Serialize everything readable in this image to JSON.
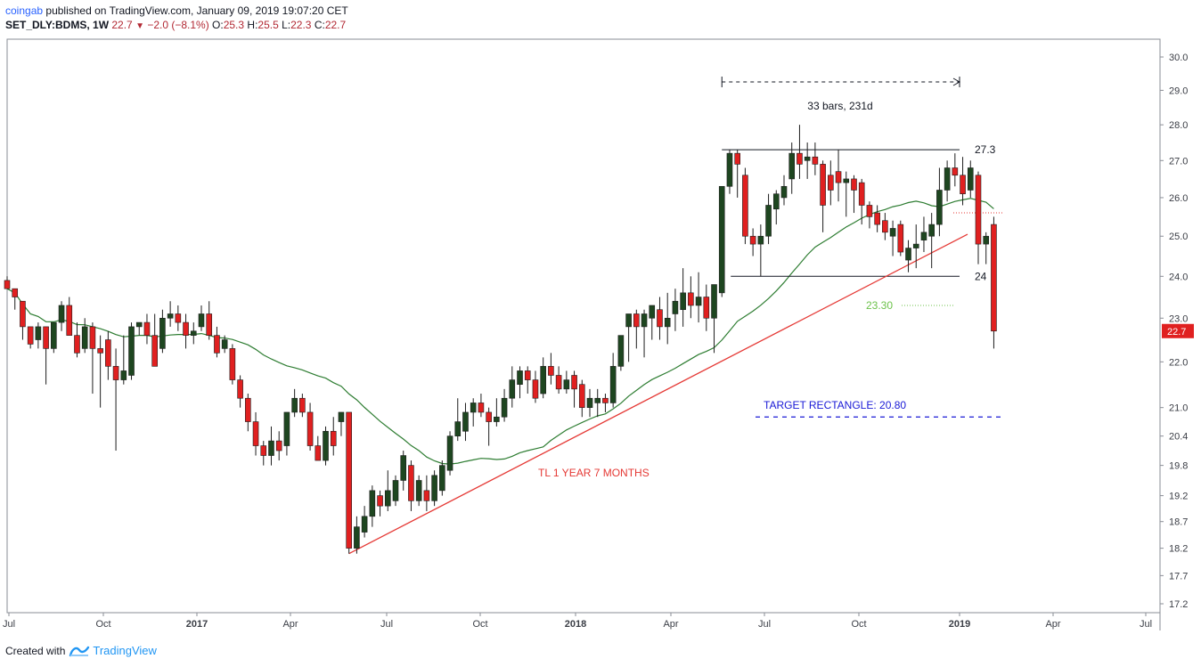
{
  "header": {
    "author": "coingab",
    "published_text": "published on TradingView.com, January 09, 2019 19:07:20 CET",
    "symbol": "SET_DLY:BDMS, 1W",
    "last": "22.7",
    "change": "−2.0 (−8.1%)",
    "o_label": "O:",
    "o_value": "25.3",
    "h_label": "H:",
    "h_value": "25.5",
    "l_label": "L:",
    "l_value": "22.3",
    "c_label": "C:",
    "c_value": "22.7"
  },
  "footer": {
    "created_with": "Created with",
    "brand": "TradingView"
  },
  "colors": {
    "up": "#1e4620",
    "down": "#e02020",
    "wick": "#1d1d1d",
    "ma": "#2e7d32",
    "trendline": "#e53935",
    "target": "#1a1ad6",
    "level_green": "#6cc24a",
    "price_tag": "#e02020"
  },
  "chart_data": {
    "type": "candlestick",
    "title": "",
    "y_scale": "log",
    "ylim": [
      17.0,
      30.5
    ],
    "y_ticks": [
      "30.0",
      "29.0",
      "28.0",
      "27.0",
      "26.0",
      "25.0",
      "24.0",
      "23.0",
      "22.0",
      "21.0",
      "20.4",
      "19.8",
      "19.2",
      "18.7",
      "18.2",
      "17.7",
      "17.2"
    ],
    "x_ticks": [
      "Jul",
      "Oct",
      "2017",
      "Apr",
      "Jul",
      "Oct",
      "2018",
      "Apr",
      "Jul",
      "Oct",
      "2019",
      "Apr",
      "Jul"
    ],
    "last_price_label": "22.7",
    "candles": [
      [
        23.9,
        23.7,
        24.0,
        23.7
      ],
      [
        23.7,
        23.5,
        23.7,
        23.2
      ],
      [
        23.4,
        22.8,
        23.4,
        22.5
      ],
      [
        22.8,
        22.4,
        22.8,
        22.3
      ],
      [
        22.5,
        22.8,
        22.9,
        22.3
      ],
      [
        22.8,
        22.3,
        22.8,
        21.5
      ],
      [
        22.3,
        22.9,
        22.9,
        22.2
      ],
      [
        22.9,
        23.3,
        23.4,
        22.7
      ],
      [
        23.3,
        22.6,
        23.5,
        22.6
      ],
      [
        22.6,
        22.2,
        22.9,
        22.1
      ],
      [
        22.3,
        22.8,
        23.0,
        22.2
      ],
      [
        22.8,
        22.3,
        22.9,
        21.3
      ],
      [
        22.3,
        22.2,
        22.6,
        21.0
      ],
      [
        22.5,
        21.9,
        22.7,
        21.6
      ],
      [
        21.9,
        21.6,
        22.3,
        20.1
      ],
      [
        21.6,
        21.8,
        22.6,
        21.5
      ],
      [
        21.7,
        22.8,
        22.9,
        21.6
      ],
      [
        22.8,
        22.9,
        22.9,
        22.6
      ],
      [
        22.9,
        22.6,
        23.1,
        22.4
      ],
      [
        22.6,
        21.9,
        23.1,
        21.9
      ],
      [
        22.3,
        23.0,
        23.2,
        22.2
      ],
      [
        23.0,
        23.1,
        23.4,
        22.8
      ],
      [
        23.1,
        22.9,
        23.3,
        22.7
      ],
      [
        22.9,
        22.6,
        23.1,
        22.3
      ],
      [
        22.6,
        22.7,
        22.9,
        22.4
      ],
      [
        22.8,
        23.1,
        23.3,
        22.7
      ],
      [
        23.1,
        22.6,
        23.4,
        22.5
      ],
      [
        22.6,
        22.2,
        22.8,
        22.1
      ],
      [
        22.3,
        22.5,
        22.6,
        22.2
      ],
      [
        22.3,
        21.6,
        22.4,
        21.5
      ],
      [
        21.6,
        21.2,
        21.7,
        21.0
      ],
      [
        21.2,
        20.7,
        21.3,
        20.5
      ],
      [
        20.7,
        20.2,
        20.9,
        20.0
      ],
      [
        20.2,
        20.0,
        20.3,
        19.8
      ],
      [
        20.0,
        20.3,
        20.6,
        19.8
      ],
      [
        20.3,
        20.1,
        20.5,
        19.9
      ],
      [
        20.2,
        20.9,
        20.9,
        20.0
      ],
      [
        20.9,
        21.2,
        21.4,
        20.8
      ],
      [
        21.2,
        20.9,
        21.3,
        20.8
      ],
      [
        20.9,
        20.2,
        21.1,
        20.1
      ],
      [
        20.2,
        19.9,
        20.4,
        19.9
      ],
      [
        19.9,
        20.5,
        20.6,
        19.8
      ],
      [
        20.5,
        20.2,
        20.8,
        20.0
      ],
      [
        20.7,
        20.9,
        20.9,
        20.4
      ],
      [
        20.9,
        18.2,
        20.9,
        18.1
      ],
      [
        18.2,
        18.6,
        18.8,
        18.1
      ],
      [
        18.5,
        18.8,
        19.0,
        18.4
      ],
      [
        18.8,
        19.3,
        19.4,
        18.6
      ],
      [
        19.2,
        19.0,
        19.3,
        18.8
      ],
      [
        19.0,
        19.3,
        19.7,
        18.9
      ],
      [
        19.1,
        19.5,
        19.6,
        19.0
      ],
      [
        19.5,
        20.0,
        20.1,
        19.3
      ],
      [
        19.8,
        19.1,
        19.9,
        18.9
      ],
      [
        19.1,
        19.5,
        19.6,
        19.0
      ],
      [
        19.3,
        19.1,
        19.6,
        18.9
      ],
      [
        19.1,
        19.6,
        19.7,
        19.0
      ],
      [
        19.3,
        19.8,
        19.9,
        19.2
      ],
      [
        19.7,
        20.4,
        20.5,
        19.6
      ],
      [
        20.4,
        20.7,
        21.2,
        20.3
      ],
      [
        20.5,
        20.9,
        21.1,
        20.3
      ],
      [
        20.9,
        21.1,
        21.2,
        20.6
      ],
      [
        21.1,
        20.9,
        21.3,
        20.8
      ],
      [
        20.9,
        20.7,
        21.0,
        20.2
      ],
      [
        20.7,
        20.8,
        21.2,
        20.6
      ],
      [
        20.8,
        21.2,
        21.4,
        20.7
      ],
      [
        21.2,
        21.6,
        21.9,
        21.0
      ],
      [
        21.5,
        21.8,
        21.9,
        21.2
      ],
      [
        21.8,
        21.6,
        21.9,
        21.3
      ],
      [
        21.6,
        21.2,
        21.8,
        21.1
      ],
      [
        21.3,
        21.9,
        22.1,
        21.2
      ],
      [
        21.9,
        21.7,
        22.2,
        21.5
      ],
      [
        21.7,
        21.4,
        21.9,
        21.3
      ],
      [
        21.4,
        21.6,
        21.8,
        21.3
      ],
      [
        21.7,
        21.4,
        21.8,
        21.0
      ],
      [
        21.5,
        21.0,
        21.6,
        20.8
      ],
      [
        21.0,
        21.2,
        21.4,
        20.8
      ],
      [
        21.1,
        21.2,
        21.4,
        20.8
      ],
      [
        21.2,
        21.1,
        21.3,
        20.9
      ],
      [
        21.1,
        21.9,
        22.2,
        21.0
      ],
      [
        21.9,
        22.6,
        22.6,
        21.8
      ],
      [
        22.8,
        23.1,
        23.1,
        22.0
      ],
      [
        23.1,
        22.8,
        23.2,
        22.3
      ],
      [
        22.8,
        23.1,
        23.2,
        22.1
      ],
      [
        23.0,
        23.3,
        23.3,
        22.5
      ],
      [
        23.2,
        22.8,
        23.5,
        22.5
      ],
      [
        22.8,
        23.0,
        23.6,
        22.4
      ],
      [
        23.1,
        23.4,
        23.7,
        22.7
      ],
      [
        23.2,
        23.6,
        24.2,
        22.8
      ],
      [
        23.6,
        23.3,
        24.0,
        23.0
      ],
      [
        23.3,
        23.5,
        24.1,
        22.9
      ],
      [
        23.5,
        23.0,
        23.8,
        22.7
      ],
      [
        23.0,
        23.8,
        23.8,
        22.2
      ],
      [
        23.6,
        26.3,
        26.3,
        23.5
      ],
      [
        26.3,
        27.2,
        27.3,
        26.1
      ],
      [
        27.2,
        26.9,
        27.3,
        26.0
      ],
      [
        26.6,
        25.0,
        26.8,
        24.8
      ],
      [
        25.0,
        24.8,
        25.2,
        24.5
      ],
      [
        24.8,
        25.0,
        25.3,
        24.0
      ],
      [
        25.0,
        25.8,
        26.1,
        24.8
      ],
      [
        25.7,
        26.1,
        26.2,
        25.3
      ],
      [
        26.0,
        26.3,
        26.6,
        25.8
      ],
      [
        26.5,
        27.2,
        27.5,
        26.1
      ],
      [
        27.2,
        26.9,
        28.0,
        26.5
      ],
      [
        27.0,
        27.1,
        27.5,
        26.5
      ],
      [
        27.1,
        26.9,
        27.5,
        26.6
      ],
      [
        26.9,
        25.8,
        27.0,
        25.1
      ],
      [
        26.6,
        26.2,
        27.0,
        25.8
      ],
      [
        26.7,
        26.4,
        27.3,
        25.9
      ],
      [
        26.4,
        26.5,
        26.7,
        25.5
      ],
      [
        26.5,
        26.2,
        26.6,
        25.6
      ],
      [
        26.4,
        25.8,
        26.5,
        25.3
      ],
      [
        25.8,
        25.5,
        25.9,
        25.2
      ],
      [
        25.6,
        25.3,
        25.8,
        25.1
      ],
      [
        25.4,
        25.1,
        25.6,
        24.9
      ],
      [
        25.0,
        25.2,
        25.4,
        24.5
      ],
      [
        25.3,
        24.6,
        25.4,
        24.5
      ],
      [
        24.4,
        24.7,
        24.9,
        24.1
      ],
      [
        24.7,
        24.8,
        25.3,
        24.2
      ],
      [
        24.9,
        25.1,
        25.5,
        24.6
      ],
      [
        25.0,
        25.3,
        25.6,
        24.2
      ],
      [
        25.3,
        26.2,
        26.8,
        25.0
      ],
      [
        26.2,
        26.8,
        27.0,
        25.9
      ],
      [
        26.8,
        26.6,
        27.2,
        26.3
      ],
      [
        26.6,
        26.1,
        27.1,
        25.8
      ],
      [
        26.2,
        26.8,
        27.0,
        26.0
      ],
      [
        26.6,
        24.8,
        26.7,
        24.3
      ],
      [
        24.8,
        25.0,
        25.1,
        24.3
      ],
      [
        25.3,
        22.7,
        25.5,
        22.3
      ]
    ],
    "ma_label": "",
    "annotations": {
      "range_label": "33 bars, 231d",
      "resistance_label": "27.3",
      "support_label": "24",
      "green_level_label": "23.30",
      "target_label": "TARGET RECTANGLE: 20.80",
      "trendline_label": "TL 1 YEAR 7 MONTHS"
    }
  }
}
